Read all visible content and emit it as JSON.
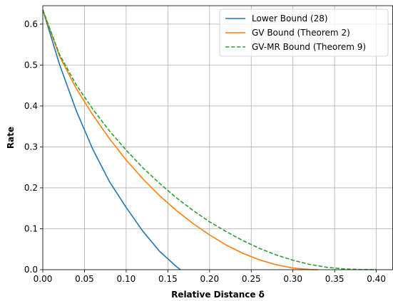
{
  "chart_data": {
    "type": "line",
    "xlabel": "Relative Distance δ",
    "ylabel": "Rate",
    "xlim": [
      0.0,
      0.42
    ],
    "ylim": [
      0.0,
      0.645
    ],
    "xticks": [
      "0.00",
      "0.05",
      "0.10",
      "0.15",
      "0.20",
      "0.25",
      "0.30",
      "0.35",
      "0.40"
    ],
    "yticks": [
      "0.0",
      "0.1",
      "0.2",
      "0.3",
      "0.4",
      "0.5",
      "0.6"
    ],
    "grid": true,
    "legend_position": "top-right",
    "series": [
      {
        "name": "Lower Bound (28)",
        "color": "#1f77b4",
        "style": "solid",
        "x": [
          0.0,
          0.02,
          0.04,
          0.06,
          0.08,
          0.1,
          0.12,
          0.14,
          0.16,
          0.165
        ],
        "y": [
          0.635,
          0.502,
          0.389,
          0.294,
          0.215,
          0.152,
          0.094,
          0.045,
          0.008,
          0.0
        ]
      },
      {
        "name": "GV Bound (Theorem 2)",
        "color": "#ff7f0e",
        "style": "solid",
        "x": [
          0.0,
          0.02,
          0.04,
          0.06,
          0.08,
          0.1,
          0.12,
          0.14,
          0.16,
          0.18,
          0.2,
          0.22,
          0.24,
          0.26,
          0.28,
          0.3,
          0.32,
          0.33
        ],
        "y": [
          0.635,
          0.522,
          0.443,
          0.378,
          0.32,
          0.268,
          0.222,
          0.181,
          0.145,
          0.113,
          0.085,
          0.06,
          0.04,
          0.024,
          0.012,
          0.004,
          0.0005,
          0.0
        ]
      },
      {
        "name": "GV-MR Bound (Theorem 9)",
        "color": "#2ca02c",
        "style": "dashed",
        "x": [
          0.0,
          0.02,
          0.04,
          0.06,
          0.08,
          0.1,
          0.12,
          0.14,
          0.16,
          0.18,
          0.2,
          0.22,
          0.24,
          0.26,
          0.28,
          0.3,
          0.32,
          0.34,
          0.36,
          0.38,
          0.4
        ],
        "y": [
          0.635,
          0.526,
          0.452,
          0.392,
          0.339,
          0.292,
          0.249,
          0.211,
          0.176,
          0.145,
          0.117,
          0.093,
          0.071,
          0.052,
          0.036,
          0.023,
          0.013,
          0.006,
          0.002,
          0.0005,
          0.0
        ]
      }
    ]
  }
}
